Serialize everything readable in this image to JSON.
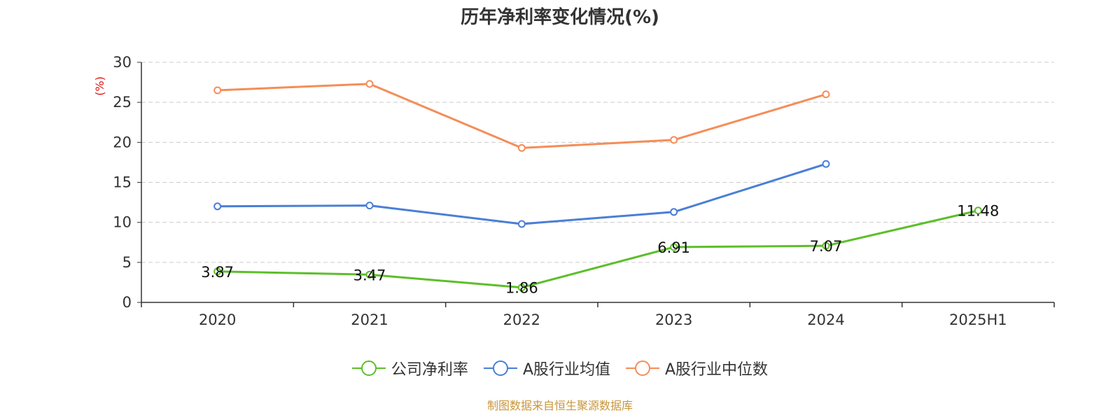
{
  "chart_data": {
    "type": "line",
    "title": "历年净利率变化情况(%)",
    "ylabel": "(%)",
    "xlabel": "",
    "categories": [
      "2020",
      "2021",
      "2022",
      "2023",
      "2024",
      "2025H1"
    ],
    "ylim": [
      0,
      30
    ],
    "yticks": [
      0,
      5,
      10,
      15,
      20,
      25,
      30
    ],
    "grid": true,
    "series": [
      {
        "name": "公司净利率",
        "color": "#5cbf2a",
        "values": [
          3.87,
          3.47,
          1.86,
          6.91,
          7.07,
          11.48
        ],
        "labels": [
          "3.87",
          "3.47",
          "1.86",
          "6.91",
          "7.07",
          "11.48"
        ]
      },
      {
        "name": "A股行业均值",
        "color": "#4a7fd6",
        "values": [
          12.0,
          12.1,
          9.8,
          11.3,
          17.3,
          null
        ]
      },
      {
        "name": "A股行业中位数",
        "color": "#f58d57",
        "values": [
          26.5,
          27.3,
          19.3,
          20.3,
          26.0,
          null
        ]
      }
    ],
    "legend_position": "bottom-center",
    "source": "制图数据来自恒生聚源数据库"
  },
  "colors": {
    "axis": "#333333",
    "grid": "#cccccc",
    "ylabel": "#e01010",
    "source": "#c8963c"
  }
}
